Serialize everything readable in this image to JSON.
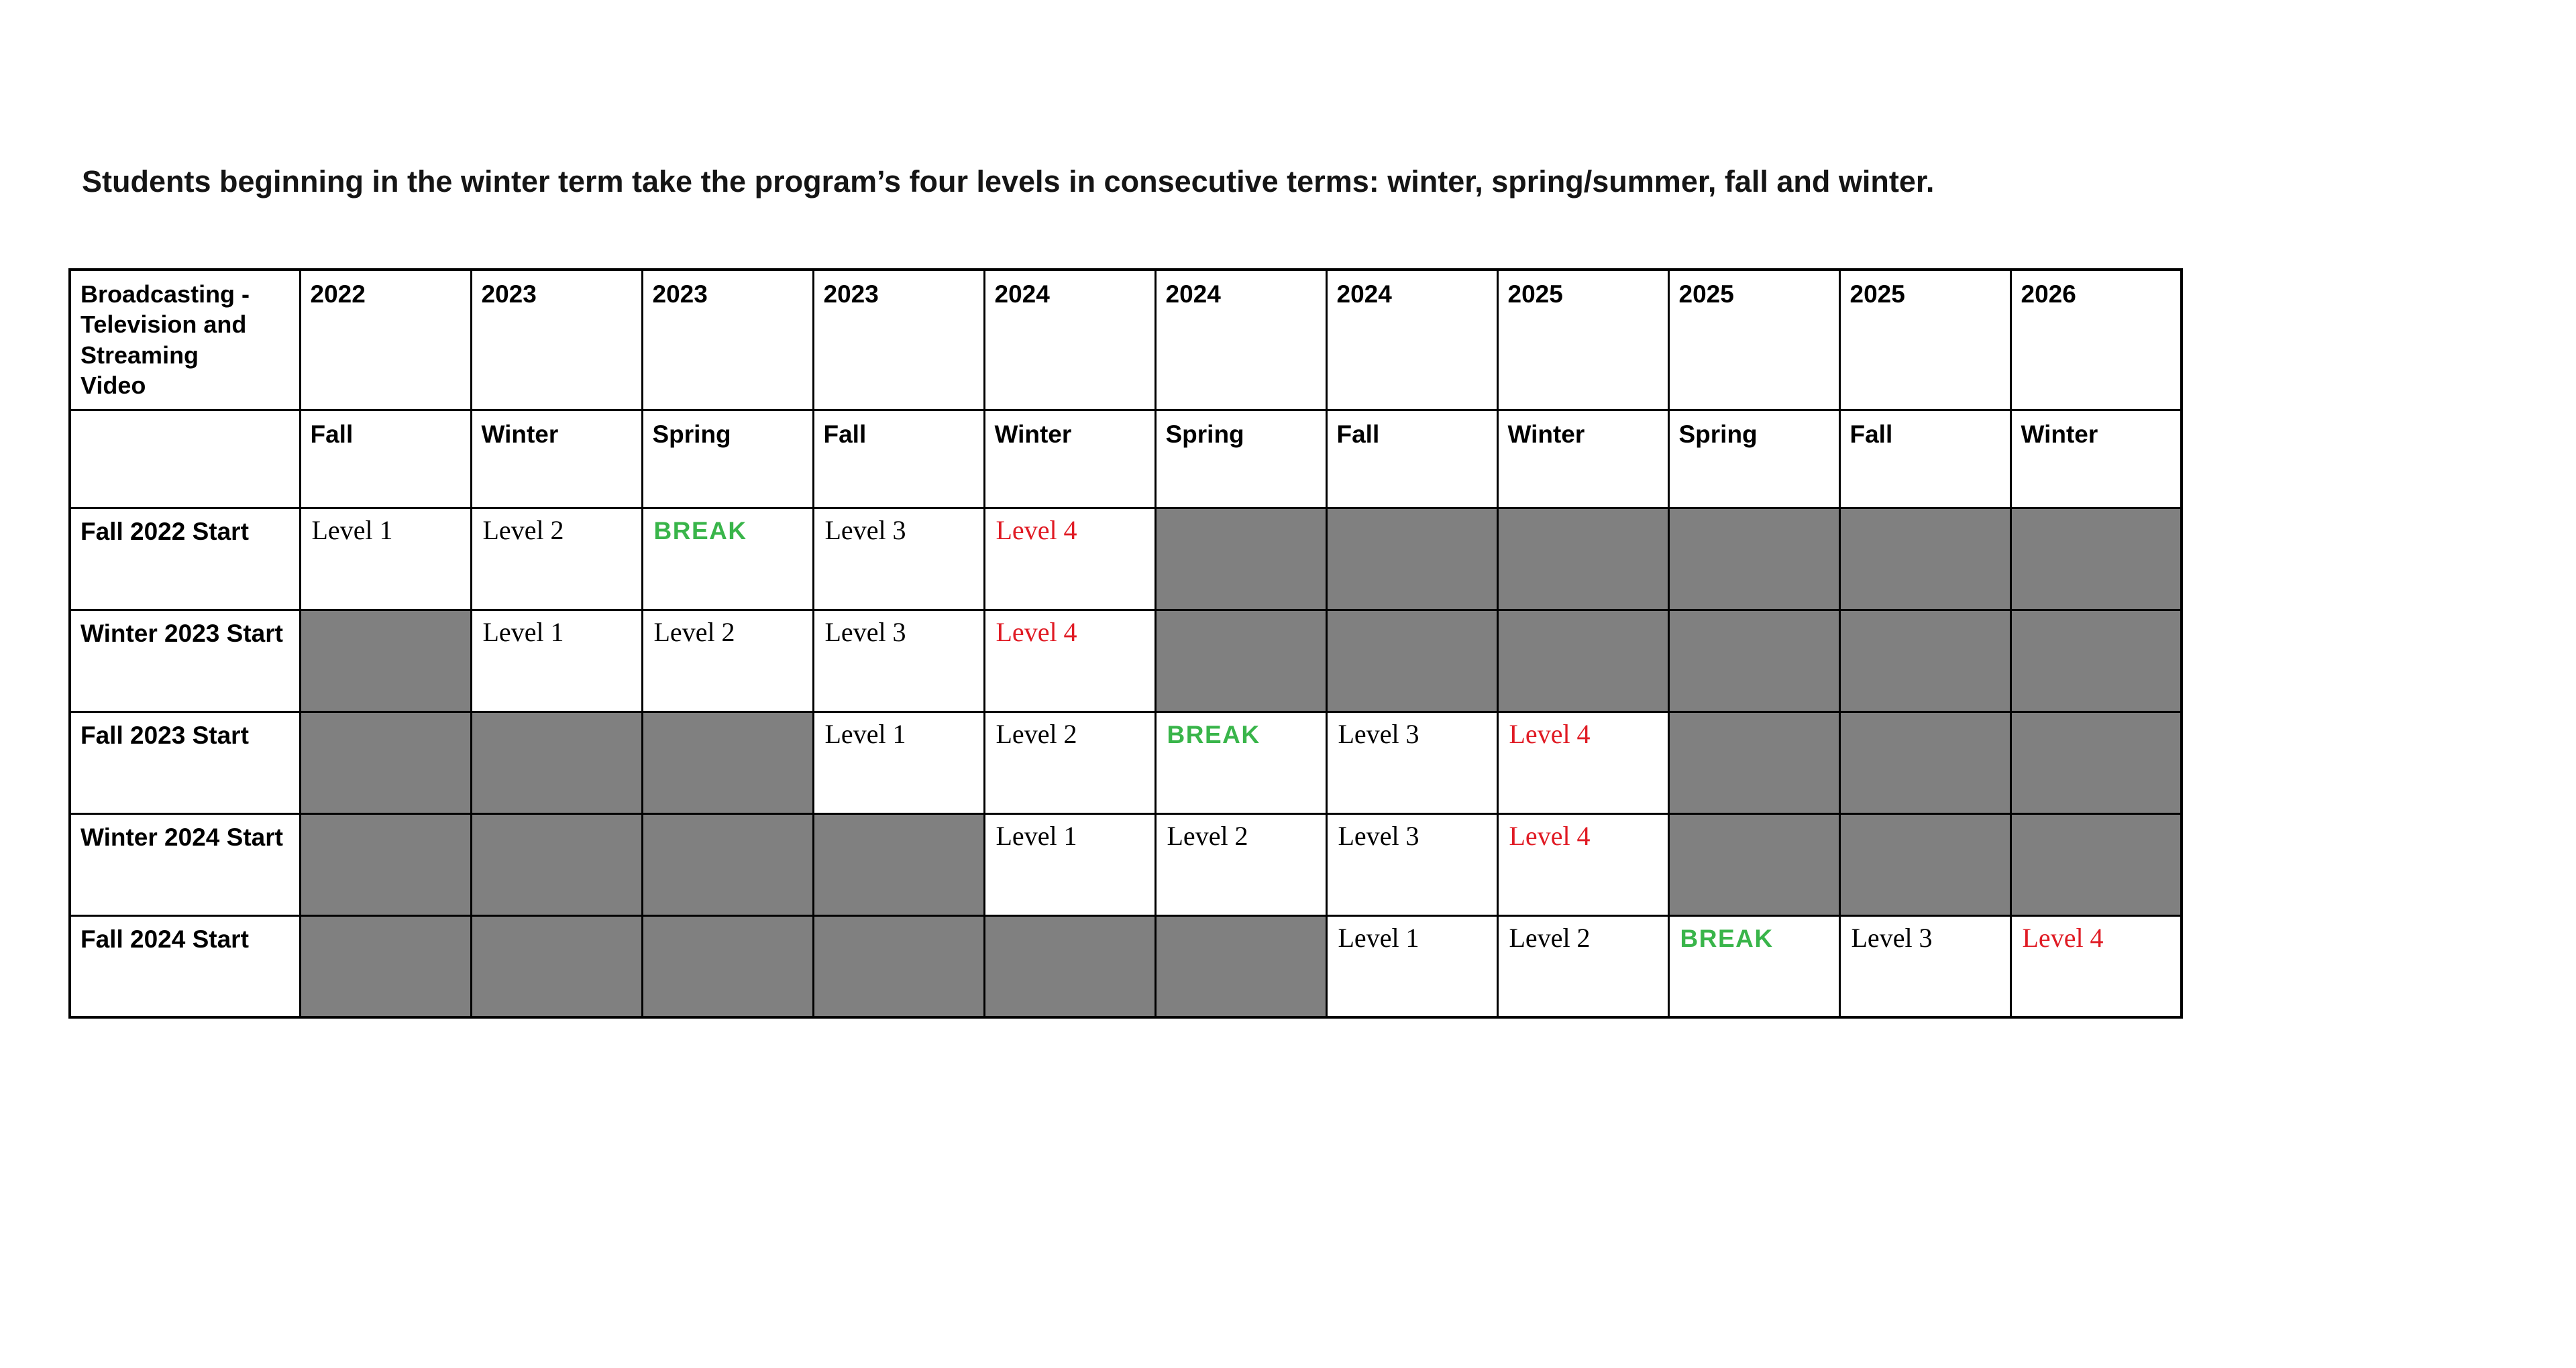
{
  "page": {
    "title": "Students beginning in the winter term take the program’s four levels in consecutive terms: winter, spring/summer, fall and winter."
  },
  "colors": {
    "grey_cell": "#808080",
    "break_green": "#39b54a",
    "level4_red": "#e01b24",
    "border": "#000000",
    "text": "#000000"
  },
  "table": {
    "corner_label": "Broadcasting - Television and Streaming Video",
    "years": [
      "2022",
      "2023",
      "2023",
      "2023",
      "2024",
      "2024",
      "2024",
      "2025",
      "2025",
      "2025",
      "2026"
    ],
    "terms": [
      "Fall",
      "Winter",
      "Spring",
      "Fall",
      "Winter",
      "Spring",
      "Fall",
      "Winter",
      "Spring",
      "Fall",
      "Winter"
    ],
    "rows": [
      {
        "label": "Fall 2022 Start",
        "cells": [
          {
            "t": "level",
            "v": "Level 1"
          },
          {
            "t": "level",
            "v": "Level 2"
          },
          {
            "t": "break",
            "v": "BREAK"
          },
          {
            "t": "level",
            "v": "Level 3"
          },
          {
            "t": "level4",
            "v": "Level 4"
          },
          {
            "t": "blocked",
            "v": ""
          },
          {
            "t": "blocked",
            "v": ""
          },
          {
            "t": "blocked",
            "v": ""
          },
          {
            "t": "blocked",
            "v": ""
          },
          {
            "t": "blocked",
            "v": ""
          },
          {
            "t": "blocked",
            "v": ""
          }
        ]
      },
      {
        "label": "Winter 2023 Start",
        "cells": [
          {
            "t": "blocked",
            "v": ""
          },
          {
            "t": "level",
            "v": "Level 1"
          },
          {
            "t": "level",
            "v": "Level 2"
          },
          {
            "t": "level",
            "v": "Level 3"
          },
          {
            "t": "level4",
            "v": "Level 4"
          },
          {
            "t": "blocked",
            "v": ""
          },
          {
            "t": "blocked",
            "v": ""
          },
          {
            "t": "blocked",
            "v": ""
          },
          {
            "t": "blocked",
            "v": ""
          },
          {
            "t": "blocked",
            "v": ""
          },
          {
            "t": "blocked",
            "v": ""
          }
        ]
      },
      {
        "label": "Fall 2023 Start",
        "cells": [
          {
            "t": "blocked",
            "v": ""
          },
          {
            "t": "blocked",
            "v": ""
          },
          {
            "t": "blocked",
            "v": ""
          },
          {
            "t": "level",
            "v": "Level 1"
          },
          {
            "t": "level",
            "v": "Level 2"
          },
          {
            "t": "break",
            "v": "BREAK"
          },
          {
            "t": "level",
            "v": "Level 3"
          },
          {
            "t": "level4",
            "v": "Level 4"
          },
          {
            "t": "blocked",
            "v": ""
          },
          {
            "t": "blocked",
            "v": ""
          },
          {
            "t": "blocked",
            "v": ""
          }
        ]
      },
      {
        "label": "Winter 2024 Start",
        "cells": [
          {
            "t": "blocked",
            "v": ""
          },
          {
            "t": "blocked",
            "v": ""
          },
          {
            "t": "blocked",
            "v": ""
          },
          {
            "t": "blocked",
            "v": ""
          },
          {
            "t": "level",
            "v": "Level 1"
          },
          {
            "t": "level",
            "v": "Level 2"
          },
          {
            "t": "level",
            "v": "Level 3"
          },
          {
            "t": "level4",
            "v": "Level 4"
          },
          {
            "t": "blocked",
            "v": ""
          },
          {
            "t": "blocked",
            "v": ""
          },
          {
            "t": "blocked",
            "v": ""
          }
        ]
      },
      {
        "label": "Fall 2024 Start",
        "cells": [
          {
            "t": "blocked",
            "v": ""
          },
          {
            "t": "blocked",
            "v": ""
          },
          {
            "t": "blocked",
            "v": ""
          },
          {
            "t": "blocked",
            "v": ""
          },
          {
            "t": "blocked",
            "v": ""
          },
          {
            "t": "blocked",
            "v": ""
          },
          {
            "t": "level",
            "v": "Level 1"
          },
          {
            "t": "level",
            "v": "Level 2"
          },
          {
            "t": "break",
            "v": "BREAK"
          },
          {
            "t": "level",
            "v": "Level 3"
          },
          {
            "t": "level4",
            "v": "Level 4"
          }
        ]
      }
    ]
  }
}
